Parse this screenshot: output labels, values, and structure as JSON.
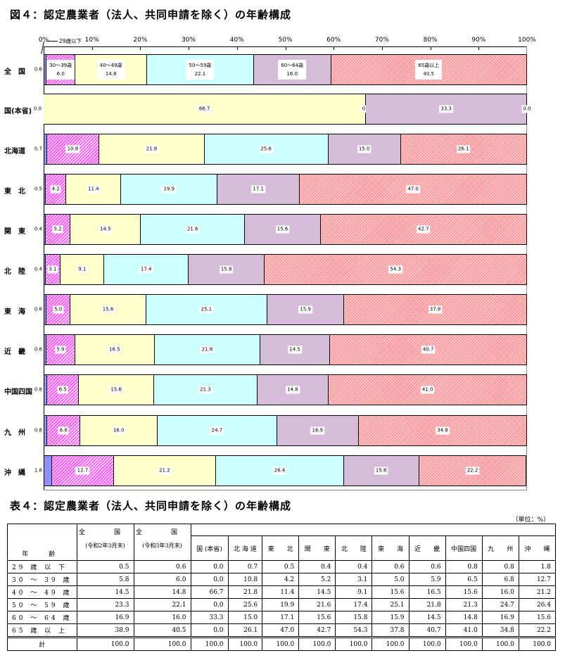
{
  "figure_title": "図４：認定農業者（法人、共同申請を除く）の年齢構成",
  "table_title": "表４：認定農業者（法人、共同申請を除く）の年齢構成",
  "unit_label": "（単位：%）",
  "callout_label": "29歳以下",
  "axis_ticks": [
    "0%",
    "10%",
    "20%",
    "30%",
    "40%",
    "50%",
    "60%",
    "70%",
    "80%",
    "90%",
    "100%"
  ],
  "colors": {
    "age_29_under": "#8f8fff",
    "age_30_39": "#ff66ff",
    "age_40_49": "#ffffcc",
    "age_50_59": "#ccffff",
    "age_60_64": "#d5bcd9",
    "age_65_over": "#ff8c90"
  },
  "chart_data": {
    "type": "bar",
    "orientation": "horizontal",
    "stacked": "percent",
    "title": "図４：認定農業者（法人、共同申請を除く）の年齢構成",
    "xlabel": "",
    "ylabel": "",
    "xlim": [
      0,
      100
    ],
    "x_ticks": [
      "0%",
      "10%",
      "20%",
      "30%",
      "40%",
      "50%",
      "60%",
      "70%",
      "80%",
      "90%",
      "100%"
    ],
    "grid": false,
    "legend": "inline labels on 全国 bar",
    "categories": [
      "全　国",
      "国(本省)",
      "北海道",
      "東　北",
      "関　東",
      "北　陸",
      "東　海",
      "近　畿",
      "中国四国",
      "九　州",
      "沖　縄"
    ],
    "series": [
      {
        "name": "29歳以下",
        "values": [
          0.6,
          0.0,
          0.7,
          0.5,
          0.4,
          0.4,
          0.6,
          0.6,
          0.8,
          0.8,
          1.8
        ]
      },
      {
        "name": "30～39歳",
        "values": [
          6.0,
          0.0,
          10.8,
          4.2,
          5.2,
          3.1,
          5.0,
          5.9,
          6.5,
          6.8,
          12.7
        ]
      },
      {
        "name": "40～49歳",
        "values": [
          14.8,
          66.7,
          21.8,
          11.4,
          14.5,
          9.1,
          15.6,
          16.5,
          15.6,
          16.0,
          21.2
        ]
      },
      {
        "name": "50～59歳",
        "values": [
          22.1,
          0.0,
          25.6,
          19.9,
          21.6,
          17.4,
          25.1,
          21.8,
          21.3,
          24.7,
          26.4
        ]
      },
      {
        "name": "60～64歳",
        "values": [
          16.0,
          33.3,
          15.0,
          17.1,
          15.6,
          15.8,
          15.9,
          14.5,
          14.8,
          16.9,
          15.6
        ]
      },
      {
        "name": "65歳以上",
        "values": [
          40.5,
          0.0,
          26.1,
          47.0,
          42.7,
          54.3,
          37.8,
          40.7,
          41.0,
          34.8,
          22.2
        ]
      }
    ]
  },
  "table": {
    "age_header": "年　齢",
    "national_prev": {
      "label": "全　国",
      "sub": "(令和2年3月末)"
    },
    "national_curr": {
      "label": "全　国",
      "sub": "(令和3年3月末)"
    },
    "region_headers": [
      "国 (本省)",
      "北 海 道",
      "東　　北",
      "関　　東",
      "北　　陸",
      "東　　海",
      "近　　畿",
      "中国四国",
      "九　　州",
      "沖　　縄"
    ],
    "rows": [
      {
        "age": "29 歳 以 下",
        "values": [
          "0.5",
          "0.6",
          "0.0",
          "0.7",
          "0.5",
          "0.4",
          "0.4",
          "0.6",
          "0.6",
          "0.8",
          "0.8",
          "1.8"
        ]
      },
      {
        "age": "30 ～ 39 歳",
        "values": [
          "5.8",
          "6.0",
          "0.0",
          "10.8",
          "4.2",
          "5.2",
          "3.1",
          "5.0",
          "5.9",
          "6.5",
          "6.8",
          "12.7"
        ]
      },
      {
        "age": "40 ～ 49 歳",
        "values": [
          "14.5",
          "14.8",
          "66.7",
          "21.8",
          "11.4",
          "14.5",
          "9.1",
          "15.6",
          "16.5",
          "15.6",
          "16.0",
          "21.2"
        ]
      },
      {
        "age": "50 ～ 59 歳",
        "values": [
          "23.3",
          "22.1",
          "0.0",
          "25.6",
          "19.9",
          "21.6",
          "17.4",
          "25.1",
          "21.8",
          "21.3",
          "24.7",
          "26.4"
        ]
      },
      {
        "age": "60 ～ 64 歳",
        "values": [
          "16.9",
          "16.0",
          "33.3",
          "15.0",
          "17.1",
          "15.6",
          "15.8",
          "15.9",
          "14.5",
          "14.8",
          "16.9",
          "15.6"
        ]
      },
      {
        "age": "65 歳 以 上",
        "values": [
          "38.9",
          "40.5",
          "0.0",
          "26.1",
          "47.0",
          "42.7",
          "54.3",
          "37.8",
          "40.7",
          "41.0",
          "34.8",
          "22.2"
        ]
      }
    ],
    "total": {
      "label": "計",
      "values": [
        "100.0",
        "100.0",
        "100.0",
        "100.0",
        "100.0",
        "100.0",
        "100.0",
        "100.0",
        "100.0",
        "100.0",
        "100.0",
        "100.0"
      ]
    }
  }
}
